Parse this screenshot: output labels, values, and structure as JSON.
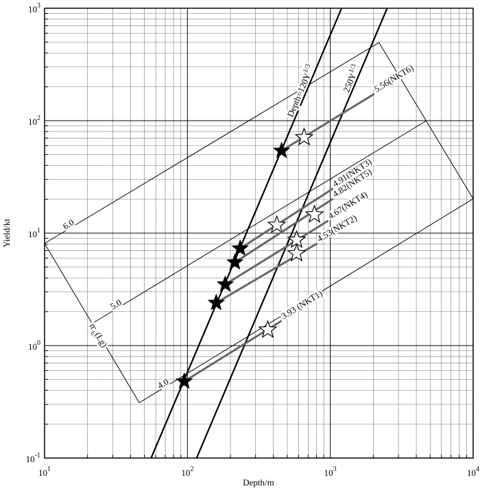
{
  "chart_data": {
    "type": "scatter",
    "log_x": true,
    "log_y": true,
    "grid": true,
    "x_label": "Depth/m",
    "y_label": "Yield/kt",
    "xlim": [
      10,
      10000
    ],
    "ylim": [
      0.1,
      1000
    ],
    "xticks": [
      {
        "value": 10,
        "label": "10",
        "exponent": "1"
      },
      {
        "value": 100,
        "label": "10",
        "exponent": "2"
      },
      {
        "value": 1000,
        "label": "10",
        "exponent": "3"
      },
      {
        "value": 10000,
        "label": "10",
        "exponent": "4"
      }
    ],
    "yticks": [
      {
        "value": 0.1,
        "label": "10",
        "exponent": "-1"
      },
      {
        "value": 1,
        "label": "10",
        "exponent": "0"
      },
      {
        "value": 10,
        "label": "10",
        "exponent": "1"
      },
      {
        "value": 100,
        "label": "10",
        "exponent": "2"
      },
      {
        "value": 1000,
        "label": "10",
        "exponent": "3"
      }
    ],
    "xminor": [
      20,
      30,
      40,
      50,
      60,
      70,
      80,
      90,
      200,
      300,
      400,
      500,
      600,
      700,
      800,
      900,
      2000,
      3000,
      4000,
      5000,
      6000,
      7000,
      8000,
      9000
    ],
    "yminor": [
      0.2,
      0.3,
      0.4,
      0.5,
      0.6,
      0.7,
      0.8,
      0.9,
      2,
      3,
      4,
      5,
      6,
      7,
      8,
      9,
      20,
      30,
      40,
      50,
      60,
      70,
      80,
      90,
      200,
      300,
      400,
      500,
      600,
      700,
      800,
      900
    ],
    "scaling_lines": [
      {
        "name": "Depth=120Y",
        "sup": "1/3",
        "x": [
          55.7,
          1200
        ],
        "y": [
          0.1,
          1000
        ]
      },
      {
        "name": "250Y",
        "sup": "1/3",
        "x": [
          116,
          2500
        ],
        "y": [
          0.1,
          1000
        ]
      }
    ],
    "contour_title": {
      "m": "m",
      "sub": "b",
      "rest": "(Lg)"
    },
    "contours": [
      {
        "label": "6.0",
        "x": [
          10,
          2193
        ],
        "y": [
          8.1,
          495
        ]
      },
      {
        "label": "5.0",
        "x": [
          21.5,
          4710
        ],
        "y": [
          1.57,
          100
        ]
      },
      {
        "label": "4.0",
        "x": [
          46,
          10000
        ],
        "y": [
          0.31,
          20.2
        ]
      }
    ],
    "events": [
      {
        "label": "5.56(NKT6)",
        "black": [
          456,
          54
        ],
        "white": [
          656,
          71
        ],
        "end": [
          2032,
          173
        ]
      },
      {
        "label": "4.91(NKT3)",
        "black": [
          234,
          7.3
        ],
        "white": [
          422,
          11.8
        ],
        "end": [
          1045,
          24.9
        ]
      },
      {
        "label": "4.82(NKT5)",
        "black": [
          215,
          5.5
        ],
        "white": [
          775,
          14.6
        ],
        "end": [
          1045,
          20.2
        ]
      },
      {
        "label": "4.67(NKT4)",
        "black": [
          184,
          3.5
        ],
        "white": [
          581,
          8.7
        ],
        "end": [
          968,
          12.9
        ]
      },
      {
        "label": "4.53(NKT2)",
        "black": [
          159,
          2.4
        ],
        "white": [
          581,
          6.6
        ],
        "end": [
          811,
          8.1
        ]
      },
      {
        "label": "3.93 (NKT1)",
        "black": [
          95,
          0.48
        ],
        "white": [
          365,
          1.38
        ],
        "end": [
          456,
          1.66
        ]
      }
    ]
  }
}
